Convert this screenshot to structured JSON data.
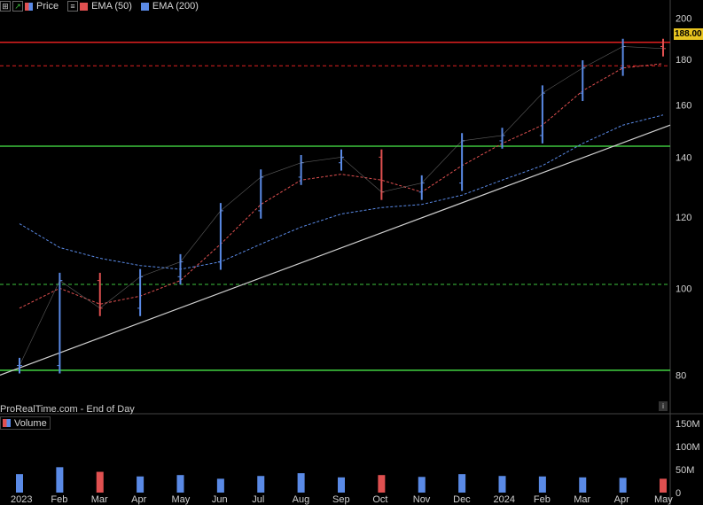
{
  "toolbar": {
    "items": [
      {
        "label": "Price",
        "icon": "price-swatch-icon"
      },
      {
        "label": "EMA (50)",
        "color": "#e05050"
      },
      {
        "label": "EMA (200)",
        "color": "#5a8ae6"
      }
    ]
  },
  "credit": "ProRealTime.com - End of Day",
  "volume_label": "Volume",
  "last_price_tag": "188.00",
  "colors": {
    "up": "#5a8ae6",
    "down": "#e05050",
    "ema50": "#e05050",
    "ema200": "#5a8ae6",
    "support": "#3ec43e",
    "resistance": "#e02020",
    "trendline": "#d0d0d0",
    "background": "#000000"
  },
  "chart_data": [
    {
      "type": "line",
      "scale": "log",
      "ylim": [
        76,
        203
      ],
      "y_ticks": [
        80,
        100,
        120,
        140,
        160,
        180,
        200
      ],
      "x_ticks": [
        "2023",
        "Feb",
        "Mar",
        "Apr",
        "May",
        "Jun",
        "Jul",
        "Aug",
        "Sep",
        "Oct",
        "Nov",
        "Dec",
        "2024",
        "Feb",
        "Mar",
        "Apr",
        "May"
      ],
      "grid": false,
      "legend": "top-left",
      "x": [
        "2023-01",
        "2023-02",
        "2023-03",
        "2023-04",
        "2023-05",
        "2023-06",
        "2023-07",
        "2023-08",
        "2023-09",
        "2023-10",
        "2023-11",
        "2023-12",
        "2024-01",
        "2024-02",
        "2024-03",
        "2024-04",
        "2024-05"
      ],
      "series": [
        {
          "name": "Price",
          "values": [
            82,
            102,
            95,
            103,
            107,
            122,
            133,
            138,
            140,
            128,
            131,
            146,
            148,
            165,
            176,
            186,
            185
          ]
        },
        {
          "name": "EMA (50)",
          "values": [
            95,
            100,
            96,
            98,
            102,
            112,
            124,
            132,
            134,
            132,
            128,
            137,
            145,
            152,
            166,
            176,
            178
          ]
        },
        {
          "name": "EMA (200)",
          "values": [
            118,
            111,
            108,
            106,
            105,
            107,
            112,
            117,
            121,
            123,
            124,
            127,
            132,
            137,
            145,
            152,
            156
          ]
        }
      ],
      "horizontal_lines": [
        {
          "value": 188,
          "style": "solid",
          "color": "#e02020"
        },
        {
          "value": 177,
          "style": "dashed",
          "color": "#e02020"
        },
        {
          "value": 144,
          "style": "solid",
          "color": "#3ec43e"
        },
        {
          "value": 101,
          "style": "dashed",
          "color": "#3ec43e"
        },
        {
          "value": 81,
          "style": "solid",
          "color": "#3ec43e"
        }
      ],
      "trendline": {
        "from": [
          "2023-01",
          80
        ],
        "to": [
          "2024-05",
          152
        ]
      }
    },
    {
      "type": "bar",
      "title": "Volume",
      "ylim": [
        0,
        165
      ],
      "y_ticks": [
        "0",
        "50M",
        "100M",
        "150M"
      ],
      "values_approx_M": [
        40,
        55,
        45,
        35,
        38,
        30,
        36,
        42,
        33,
        38,
        34,
        40,
        36,
        35,
        33,
        32,
        30
      ]
    }
  ]
}
